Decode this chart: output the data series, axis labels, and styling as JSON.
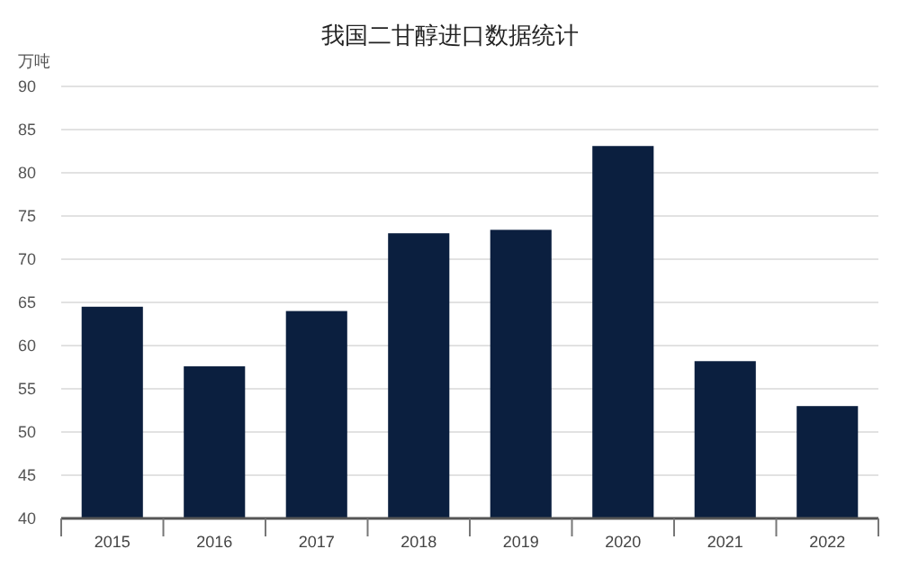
{
  "chart_data": {
    "type": "bar",
    "title": "我国二甘醇进口数据统计",
    "ylabel": "万吨",
    "categories": [
      "2015",
      "2016",
      "2017",
      "2018",
      "2019",
      "2020",
      "2021",
      "2022"
    ],
    "values": [
      64.5,
      57.6,
      64,
      73,
      73.4,
      83.1,
      58.2,
      53
    ],
    "color": "#0b1f3f",
    "ylim": [
      40,
      90
    ],
    "yticks": [
      40,
      45,
      50,
      55,
      60,
      65,
      70,
      75,
      80,
      85,
      90
    ],
    "grid": "y"
  }
}
